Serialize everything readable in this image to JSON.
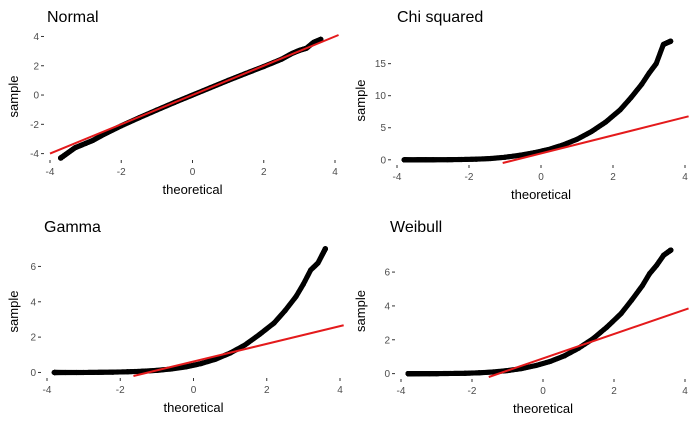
{
  "colors": {
    "points": "#000000",
    "line": "#e41a1c",
    "background": "#ffffff"
  },
  "chart_data": [
    {
      "type": "scatter",
      "subtype": "qq-plot",
      "title": "Normal",
      "xlabel": "theoretical",
      "ylabel": "sample",
      "xlim": [
        -4,
        4
      ],
      "ylim": [
        -4.3,
        4.1
      ],
      "xticks": [
        -4,
        -2,
        0,
        2,
        4
      ],
      "yticks": [
        -4,
        -2,
        0,
        2,
        4
      ],
      "grid": false,
      "reference_line": {
        "slope": 1.0,
        "intercept": 0.0
      },
      "points": {
        "x": [
          -3.7,
          -3.3,
          -3.0,
          -2.8,
          -2.5,
          -2.0,
          -1.5,
          -1.0,
          -0.5,
          0,
          0.5,
          1.0,
          1.5,
          2.0,
          2.5,
          2.8,
          3.0,
          3.2,
          3.4,
          3.6
        ],
        "y": [
          -4.3,
          -3.6,
          -3.3,
          -3.1,
          -2.7,
          -2.1,
          -1.55,
          -1.02,
          -0.5,
          0,
          0.5,
          1.0,
          1.48,
          1.95,
          2.45,
          2.85,
          3.05,
          3.2,
          3.6,
          3.8
        ]
      }
    },
    {
      "type": "scatter",
      "subtype": "qq-plot",
      "title": "Chi squared",
      "xlabel": "theoretical",
      "ylabel": "sample",
      "xlim": [
        -4,
        4
      ],
      "ylim": [
        -0.5,
        19
      ],
      "xticks": [
        -4,
        -2,
        0,
        2,
        4
      ],
      "yticks": [
        0,
        5,
        10,
        15
      ],
      "grid": false,
      "reference_line": {
        "slope": 1.41,
        "intercept": 1.0
      },
      "points": {
        "x": [
          -3.8,
          -3.5,
          -3.2,
          -3.0,
          -2.6,
          -2.2,
          -1.8,
          -1.4,
          -1.0,
          -0.6,
          -0.2,
          0.2,
          0.6,
          1.0,
          1.4,
          1.8,
          2.2,
          2.5,
          2.8,
          3.0,
          3.2,
          3.4,
          3.6
        ],
        "y": [
          0.0,
          0.0,
          0.01,
          0.01,
          0.02,
          0.05,
          0.1,
          0.2,
          0.4,
          0.7,
          1.1,
          1.6,
          2.3,
          3.2,
          4.4,
          5.9,
          7.8,
          9.7,
          11.8,
          13.5,
          15.0,
          18.0,
          18.5
        ]
      }
    },
    {
      "type": "scatter",
      "subtype": "qq-plot",
      "title": "Gamma",
      "xlabel": "theoretical",
      "ylabel": "sample",
      "xlim": [
        -4,
        4
      ],
      "ylim": [
        -0.2,
        7.1
      ],
      "xticks": [
        -4,
        -2,
        0,
        2,
        4
      ],
      "yticks": [
        0,
        2,
        4,
        6
      ],
      "grid": false,
      "reference_line": {
        "slope": 0.5,
        "intercept": 0.62
      },
      "points": {
        "x": [
          -3.8,
          -3.5,
          -3.2,
          -3.0,
          -2.6,
          -2.2,
          -1.8,
          -1.4,
          -1.0,
          -0.6,
          -0.2,
          0.2,
          0.6,
          1.0,
          1.4,
          1.8,
          2.2,
          2.5,
          2.8,
          3.0,
          3.2,
          3.4,
          3.6
        ],
        "y": [
          0.0,
          0.0,
          0.0,
          0.0,
          0.01,
          0.02,
          0.04,
          0.07,
          0.12,
          0.2,
          0.32,
          0.5,
          0.75,
          1.1,
          1.55,
          2.15,
          2.8,
          3.5,
          4.3,
          5.0,
          5.8,
          6.2,
          7.0
        ]
      }
    },
    {
      "type": "scatter",
      "subtype": "qq-plot",
      "title": "Weibull",
      "xlabel": "theoretical",
      "ylabel": "sample",
      "xlim": [
        -4,
        4
      ],
      "ylim": [
        -0.2,
        7.6
      ],
      "xticks": [
        -4,
        -2,
        0,
        2,
        4
      ],
      "yticks": [
        0,
        2,
        4,
        6
      ],
      "grid": false,
      "reference_line": {
        "slope": 0.72,
        "intercept": 0.9
      },
      "points": {
        "x": [
          -3.8,
          -3.5,
          -3.2,
          -3.0,
          -2.6,
          -2.2,
          -1.8,
          -1.4,
          -1.0,
          -0.6,
          -0.2,
          0.2,
          0.6,
          1.0,
          1.4,
          1.8,
          2.2,
          2.5,
          2.8,
          3.0,
          3.2,
          3.4,
          3.6
        ],
        "y": [
          0.0,
          0.0,
          0.0,
          0.0,
          0.01,
          0.02,
          0.05,
          0.1,
          0.18,
          0.3,
          0.48,
          0.72,
          1.05,
          1.5,
          2.05,
          2.75,
          3.55,
          4.35,
          5.2,
          5.9,
          6.4,
          7.0,
          7.3
        ]
      }
    }
  ]
}
